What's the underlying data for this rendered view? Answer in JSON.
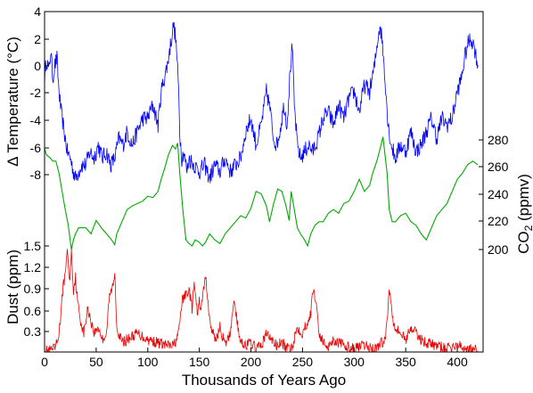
{
  "chart_data": {
    "type": "line",
    "xlabel": "Thousands of Years Ago",
    "xlim": [
      0,
      425
    ],
    "x_ticks": [
      "0",
      "50",
      "100",
      "150",
      "200",
      "250",
      "300",
      "350",
      "400"
    ],
    "series": [
      {
        "name": "temperature",
        "axis_label": "Δ Temperature (°C)",
        "color": "#0000ff",
        "ylim": [
          -9.7,
          4
        ],
        "y_ticks": [
          "4",
          "2",
          "0",
          "-2",
          "-4",
          "-6",
          "-8"
        ],
        "x": [
          0,
          2,
          4,
          6,
          8,
          10,
          12,
          14,
          16,
          18,
          20,
          22,
          25,
          28,
          30,
          33,
          36,
          40,
          44,
          48,
          52,
          56,
          60,
          64,
          68,
          72,
          76,
          80,
          85,
          90,
          95,
          100,
          105,
          110,
          113,
          116,
          119,
          122,
          125,
          127,
          128,
          130,
          131,
          133,
          135,
          138,
          140,
          145,
          150,
          155,
          160,
          165,
          170,
          175,
          180,
          185,
          190,
          195,
          200,
          205,
          210,
          215,
          218,
          222,
          225,
          228,
          232,
          235,
          238,
          240,
          242,
          245,
          248,
          252,
          256,
          260,
          265,
          270,
          275,
          280,
          285,
          290,
          295,
          300,
          305,
          310,
          315,
          320,
          323,
          325,
          327,
          330,
          333,
          336,
          340,
          345,
          350,
          355,
          360,
          365,
          370,
          375,
          380,
          385,
          390,
          395,
          400,
          404,
          407,
          410,
          413,
          416,
          420
        ],
        "values": [
          -1,
          0.5,
          -0.5,
          1,
          -1,
          0,
          0.5,
          -2,
          -3.5,
          -4.5,
          -5.5,
          -6.5,
          -7,
          -8,
          -8.5,
          -8,
          -7.5,
          -7.5,
          -6.5,
          -7,
          -6,
          -7,
          -6.5,
          -7.5,
          -7,
          -5.5,
          -6,
          -5,
          -6,
          -5,
          -4,
          -4,
          -3,
          -4.5,
          -2,
          -1,
          0,
          1.5,
          3,
          2,
          1,
          -2,
          -5,
          -7,
          -6.5,
          -8,
          -7,
          -7.5,
          -8,
          -7.5,
          -8.5,
          -7.5,
          -8,
          -7,
          -8,
          -7.5,
          -7,
          -5,
          -4,
          -6,
          -4.5,
          -2,
          -3,
          -5.5,
          -6,
          -5,
          -3,
          -4.5,
          -0.5,
          1.5,
          -3,
          -6,
          -7,
          -6.5,
          -6,
          -6.5,
          -5.5,
          -4,
          -3.5,
          -4.5,
          -3,
          -4,
          -2.5,
          -2,
          -3.5,
          -1.5,
          -2,
          0,
          2,
          3,
          2,
          -1,
          -4.5,
          -6,
          -7,
          -6,
          -6.5,
          -5,
          -6.5,
          -6,
          -5,
          -4,
          -5.5,
          -4,
          -4.5,
          -4,
          -2,
          -1,
          0.5,
          1.5,
          2,
          1.5,
          0
        ]
      },
      {
        "name": "co2",
        "axis_label": "CO2 (ppmv)",
        "color": "#00aa00",
        "ylim": [
          170,
          295
        ],
        "y_ticks": [
          "280",
          "260",
          "240",
          "220",
          "200"
        ],
        "x": [
          0,
          2,
          5,
          8,
          11,
          14,
          17,
          20,
          23,
          26,
          28,
          30,
          33,
          36,
          40,
          45,
          50,
          55,
          60,
          65,
          68,
          70,
          75,
          80,
          85,
          90,
          95,
          100,
          105,
          110,
          113,
          116,
          120,
          124,
          127,
          129,
          131,
          134,
          137,
          140,
          143,
          146,
          150,
          153,
          156,
          160,
          165,
          170,
          175,
          180,
          185,
          190,
          195,
          200,
          205,
          210,
          215,
          218,
          222,
          226,
          230,
          234,
          237,
          239,
          242,
          245,
          248,
          252,
          255,
          258,
          262,
          266,
          270,
          275,
          280,
          285,
          290,
          295,
          300,
          305,
          310,
          315,
          318,
          322,
          326,
          328,
          330,
          332,
          334,
          337,
          340,
          345,
          350,
          355,
          360,
          365,
          370,
          375,
          380,
          385,
          390,
          395,
          400,
          405,
          410,
          415,
          420
        ],
        "values": [
          275,
          270,
          268,
          265,
          265,
          255,
          240,
          225,
          212,
          192,
          200,
          205,
          210,
          210,
          210,
          205,
          216,
          210,
          205,
          200,
          196,
          205,
          215,
          225,
          228,
          230,
          232,
          236,
          235,
          240,
          250,
          258,
          270,
          278,
          275,
          280,
          255,
          225,
          200,
          197,
          195,
          200,
          198,
          195,
          198,
          205,
          200,
          197,
          205,
          210,
          215,
          220,
          218,
          226,
          240,
          238,
          228,
          215,
          230,
          242,
          240,
          228,
          216,
          240,
          225,
          210,
          205,
          200,
          195,
          205,
          212,
          215,
          215,
          222,
          225,
          222,
          230,
          232,
          240,
          250,
          240,
          245,
          255,
          265,
          278,
          285,
          270,
          255,
          225,
          215,
          215,
          220,
          222,
          215,
          212,
          205,
          200,
          210,
          220,
          225,
          230,
          240,
          250,
          255,
          262,
          265,
          262
        ]
      },
      {
        "name": "dust",
        "axis_label": "Dust (ppm)",
        "color": "#ee0000",
        "ylim": [
          0,
          2.0
        ],
        "y_ticks": [
          "1.5",
          "1.2",
          "0.9",
          "0.6",
          "0.3"
        ],
        "x": [
          0,
          5,
          10,
          13,
          16,
          18,
          20,
          22,
          24,
          26,
          28,
          30,
          32,
          35,
          38,
          42,
          45,
          48,
          52,
          56,
          60,
          63,
          65,
          67,
          68,
          70,
          75,
          80,
          90,
          100,
          110,
          120,
          125,
          130,
          133,
          136,
          140,
          143,
          145,
          148,
          150,
          152,
          154,
          156,
          158,
          160,
          163,
          166,
          170,
          175,
          180,
          183,
          185,
          188,
          190,
          195,
          200,
          205,
          210,
          215,
          220,
          225,
          230,
          235,
          240,
          245,
          250,
          255,
          258,
          260,
          262,
          264,
          266,
          270,
          275,
          280,
          290,
          300,
          310,
          320,
          330,
          332,
          334,
          336,
          338,
          340,
          345,
          350,
          355,
          360,
          365,
          370,
          380,
          390,
          400,
          410,
          420
        ],
        "values": [
          0.02,
          0.02,
          0.05,
          0.2,
          0.6,
          1.1,
          1.2,
          1.7,
          1.1,
          1.6,
          1.0,
          1.2,
          0.8,
          0.5,
          0.3,
          0.7,
          0.5,
          0.3,
          0.4,
          0.2,
          0.3,
          0.9,
          1.0,
          1.1,
          1.3,
          0.4,
          0.15,
          0.2,
          0.3,
          0.2,
          0.15,
          0.1,
          0.1,
          0.3,
          0.8,
          0.9,
          1.0,
          0.7,
          1.1,
          0.6,
          0.8,
          0.7,
          1.0,
          1.2,
          0.9,
          0.5,
          0.3,
          0.2,
          0.4,
          0.1,
          0.3,
          0.8,
          0.7,
          0.3,
          0.2,
          0.1,
          0.15,
          0.05,
          0.1,
          0.3,
          0.2,
          0.1,
          0.15,
          0.05,
          0.1,
          0.4,
          0.3,
          0.5,
          0.6,
          1.0,
          0.9,
          0.7,
          0.3,
          0.15,
          0.1,
          0.2,
          0.1,
          0.05,
          0.1,
          0.05,
          0.2,
          0.5,
          1.0,
          0.8,
          0.5,
          0.4,
          0.3,
          0.2,
          0.4,
          0.3,
          0.2,
          0.15,
          0.1,
          0.05,
          0.1,
          0.05,
          0.02
        ]
      }
    ]
  }
}
